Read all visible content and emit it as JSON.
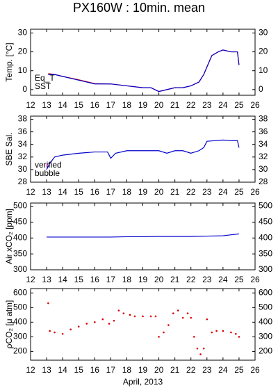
{
  "chart_data": [
    {
      "type": "line",
      "title": "PX160W : 10min. mean",
      "ylabel": "Temp. [°C]",
      "xlim": [
        12,
        26
      ],
      "xticks": [
        12,
        13,
        14,
        15,
        16,
        17,
        18,
        19,
        20,
        21,
        22,
        23,
        24,
        25,
        26
      ],
      "ylim": [
        -3,
        32
      ],
      "yticks": [
        0,
        10,
        20,
        30
      ],
      "series": [
        {
          "name": "Eq_T",
          "color": "#dd0000",
          "x": [
            13.1,
            13.5,
            14,
            15,
            16,
            17,
            18,
            19,
            19.5,
            20,
            20.5,
            21,
            21.5,
            22,
            22.5,
            22.8,
            23,
            23.3,
            23.7,
            24,
            24.5,
            24.9,
            25
          ],
          "values": [
            8.5,
            8,
            7,
            5.2,
            3.2,
            3,
            2,
            1,
            1,
            -1,
            0,
            1,
            1,
            2,
            4,
            8,
            12,
            18,
            20,
            21,
            20,
            20,
            13
          ]
        },
        {
          "name": "SST",
          "color": "#0000cc",
          "x": [
            13.1,
            13.5,
            14,
            15,
            16,
            17,
            18,
            19,
            19.5,
            20,
            20.5,
            21,
            21.5,
            22,
            22.5,
            22.8,
            23,
            23.3,
            23.7,
            24,
            24.5,
            24.9,
            25
          ],
          "values": [
            8,
            8,
            7,
            5,
            3,
            3,
            2,
            1,
            1,
            -1,
            0,
            1,
            1,
            2,
            4,
            8,
            12,
            18,
            20,
            21,
            20,
            20,
            13
          ]
        }
      ]
    },
    {
      "type": "line",
      "ylabel": "SBE Sal.",
      "xlim": [
        12,
        26
      ],
      "xticks": [
        12,
        13,
        14,
        15,
        16,
        17,
        18,
        19,
        20,
        21,
        22,
        23,
        24,
        25,
        26
      ],
      "ylim": [
        28,
        38.5
      ],
      "yticks": [
        28,
        30,
        32,
        34,
        36,
        38
      ],
      "series": [
        {
          "name": "verified",
          "color": "#0000cc",
          "x": [
            13,
            13.2,
            13.5,
            14,
            15,
            16,
            16.8,
            17,
            17.3,
            18,
            19,
            20,
            20.5,
            21,
            21.5,
            22,
            22.5,
            22.8,
            23,
            23.5,
            24,
            24.5,
            24.9,
            25
          ],
          "values": [
            30,
            31,
            32,
            32.3,
            32.6,
            32.8,
            32.8,
            31.8,
            32.6,
            33,
            33,
            33,
            32.6,
            33,
            33,
            32.6,
            33,
            33.5,
            34.5,
            34.6,
            34.7,
            34.6,
            34.6,
            33.5
          ]
        },
        {
          "name": "bubble",
          "color": "#cc00cc",
          "x": [
            13,
            13.1
          ],
          "values": [
            30.5,
            31
          ]
        }
      ]
    },
    {
      "type": "line",
      "ylabel": "Air xCO₂ [ppm]",
      "xlim": [
        12,
        26
      ],
      "xticks": [
        12,
        13,
        14,
        15,
        16,
        17,
        18,
        19,
        20,
        21,
        22,
        23,
        24,
        25,
        26
      ],
      "ylim": [
        300,
        510
      ],
      "yticks": [
        300,
        350,
        400,
        450,
        500
      ],
      "series": [
        {
          "color": "#0000cc",
          "x": [
            13,
            14,
            15,
            16,
            17,
            18,
            19,
            20,
            21,
            22,
            23,
            24,
            24.5,
            25
          ],
          "values": [
            403,
            403,
            403,
            403,
            403,
            404,
            404,
            405,
            405,
            405,
            406,
            407,
            410,
            413
          ]
        }
      ]
    },
    {
      "type": "scatter",
      "ylabel": "ρCO₂ [μ atm]",
      "xlabel": "April, 2013",
      "xlim": [
        12,
        26
      ],
      "xticks": [
        12,
        13,
        14,
        15,
        16,
        17,
        18,
        19,
        20,
        21,
        22,
        23,
        24,
        25,
        26
      ],
      "ylim": [
        140,
        630
      ],
      "yticks": [
        200,
        300,
        400,
        500,
        600
      ],
      "series": [
        {
          "color": "#dd0000",
          "x": [
            13.1,
            13.2,
            13.5,
            14,
            14.5,
            15,
            15.5,
            16,
            16.5,
            16.9,
            17.2,
            17.5,
            17.8,
            18.2,
            18.5,
            19,
            19.5,
            19.8,
            20,
            20.3,
            20.6,
            20.9,
            21.2,
            21.5,
            21.8,
            22,
            22.2,
            22.4,
            22.6,
            22.8,
            23,
            23.3,
            23.6,
            24,
            24.5,
            24.8,
            25
          ],
          "values": [
            530,
            340,
            330,
            320,
            350,
            370,
            390,
            400,
            420,
            390,
            410,
            480,
            460,
            450,
            440,
            440,
            440,
            440,
            300,
            330,
            380,
            460,
            480,
            430,
            460,
            430,
            300,
            220,
            180,
            220,
            420,
            330,
            340,
            340,
            330,
            320,
            300
          ]
        }
      ]
    }
  ]
}
